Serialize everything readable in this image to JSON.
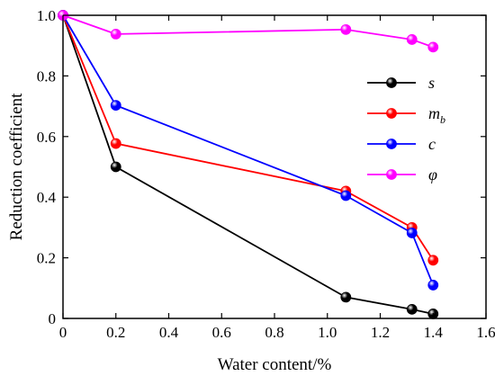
{
  "chart_data": {
    "type": "line",
    "xlabel": "Water content/%",
    "ylabel": "Reduction coefficient",
    "xlim": [
      0,
      1.6
    ],
    "ylim": [
      0,
      1.0
    ],
    "xticks": [
      0,
      0.2,
      0.4,
      0.6,
      0.8,
      1.0,
      1.2,
      1.4,
      1.6
    ],
    "xtick_labels": [
      "0",
      "0.2",
      "0.4",
      "0.6",
      "0.8",
      "1.0",
      "1.2",
      "1.4",
      "1.6"
    ],
    "yticks": [
      0,
      0.2,
      0.4,
      0.6,
      0.8,
      1.0
    ],
    "ytick_labels": [
      "0",
      "0.2",
      "0.4",
      "0.6",
      "0.8",
      "1.0"
    ],
    "grid": false,
    "legend_position": "right",
    "series": [
      {
        "name": "s",
        "name_sub": "",
        "color": "#000000",
        "x": [
          0,
          0.2,
          1.07,
          1.32,
          1.4
        ],
        "y": [
          1.0,
          0.5,
          0.07,
          0.03,
          0.015
        ]
      },
      {
        "name": "m",
        "name_sub": "b",
        "color": "#ff0000",
        "x": [
          0,
          0.2,
          1.07,
          1.32,
          1.4
        ],
        "y": [
          1.0,
          0.577,
          0.42,
          0.3,
          0.192
        ]
      },
      {
        "name": "c",
        "name_sub": "",
        "color": "#0000ff",
        "x": [
          0,
          0.2,
          1.07,
          1.32,
          1.4
        ],
        "y": [
          1.0,
          0.703,
          0.405,
          0.282,
          0.11
        ]
      },
      {
        "name": "φ",
        "name_sub": "",
        "color": "#ff00ff",
        "x": [
          0,
          0.2,
          1.07,
          1.32,
          1.4
        ],
        "y": [
          1.0,
          0.938,
          0.953,
          0.92,
          0.895
        ]
      }
    ]
  }
}
